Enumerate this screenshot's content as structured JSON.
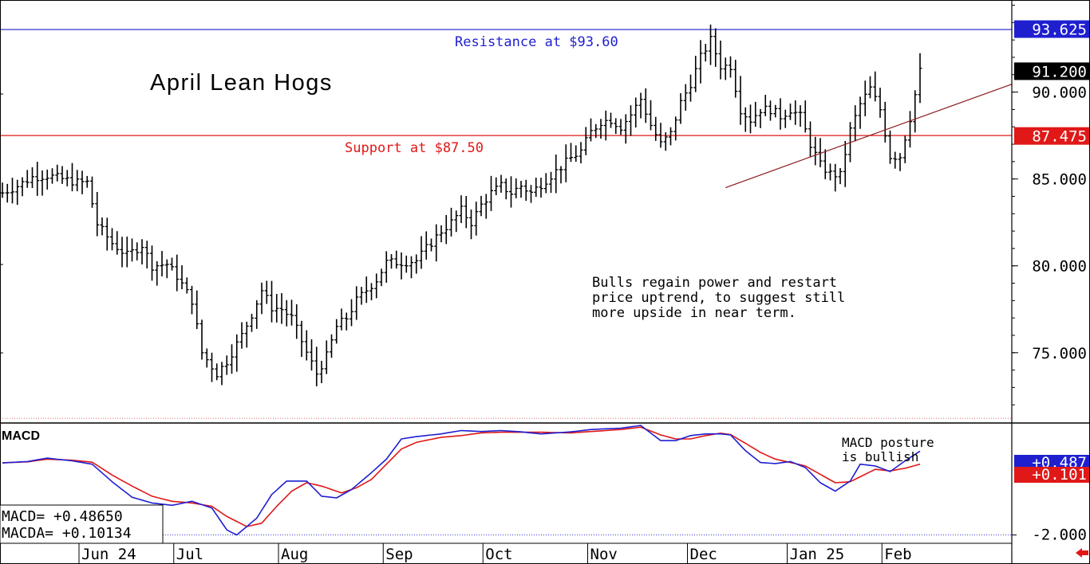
{
  "chart_data": {
    "type": "ohlc",
    "title": "April Lean Hogs",
    "price_axis": {
      "ticks": [
        "90.000",
        "85.000",
        "80.000",
        "75.000"
      ],
      "ylim": [
        71.0,
        95.3
      ]
    },
    "price_tags": [
      {
        "label": "93.625",
        "value": 93.625,
        "bg": "#1f1fd0",
        "fg": "#ffffff"
      },
      {
        "label": "91.200",
        "value": 91.2,
        "bg": "#000000",
        "fg": "#ffffff"
      },
      {
        "label": "87.475",
        "value": 87.475,
        "bg": "#e01818",
        "fg": "#ffffff"
      }
    ],
    "levels": [
      {
        "label": "Resistance at $93.60",
        "value": 93.6,
        "color": "#1f1fd0"
      },
      {
        "label": "Support at $87.50",
        "value": 87.5,
        "color": "#e01818"
      }
    ],
    "annotation": "Bulls regain power and restart\nprice uptrend, to suggest still\nmore upside in near term.",
    "trendline": {
      "color": "#8b1a1a",
      "from": {
        "bar": 145,
        "value": 84.5
      },
      "to": {
        "bar": 198,
        "value": 90.0
      }
    },
    "months": [
      "Jun 24",
      "Jul",
      "Aug",
      "Sep",
      "Oct",
      "Nov",
      "Dec",
      "Jan 25",
      "Feb"
    ],
    "month_start_bars": [
      16,
      35,
      56,
      77,
      97,
      118,
      138,
      158,
      177
    ],
    "price_path": [
      [
        0,
        84.2
      ],
      [
        3,
        84.6
      ],
      [
        6,
        85.1
      ],
      [
        9,
        85.2
      ],
      [
        12,
        85.0
      ],
      [
        15,
        84.8
      ],
      [
        17,
        84.8
      ],
      [
        19,
        82.4
      ],
      [
        22,
        81.3
      ],
      [
        25,
        80.6
      ],
      [
        28,
        81.2
      ],
      [
        30,
        80.0
      ],
      [
        33,
        80.1
      ],
      [
        35,
        79.4
      ],
      [
        38,
        78.0
      ],
      [
        40,
        75.0
      ],
      [
        43,
        73.8
      ],
      [
        45,
        74.5
      ],
      [
        48,
        76.0
      ],
      [
        50,
        77.2
      ],
      [
        52,
        78.6
      ],
      [
        54,
        77.6
      ],
      [
        56,
        77.5
      ],
      [
        58,
        77.0
      ],
      [
        61,
        75.0
      ],
      [
        63,
        73.8
      ],
      [
        65,
        74.8
      ],
      [
        67,
        76.5
      ],
      [
        69,
        77.0
      ],
      [
        71,
        78.0
      ],
      [
        73,
        78.6
      ],
      [
        75,
        79.2
      ],
      [
        77,
        80.2
      ],
      [
        80,
        80.2
      ],
      [
        83,
        80.3
      ],
      [
        85,
        81.0
      ],
      [
        88,
        82.0
      ],
      [
        90,
        82.5
      ],
      [
        92,
        83.2
      ],
      [
        94,
        82.5
      ],
      [
        96,
        83.5
      ],
      [
        98,
        84.2
      ],
      [
        100,
        84.6
      ],
      [
        102,
        84.2
      ],
      [
        104,
        84.6
      ],
      [
        106,
        84.2
      ],
      [
        108,
        84.7
      ],
      [
        110,
        85.2
      ],
      [
        112,
        85.7
      ],
      [
        114,
        86.2
      ],
      [
        116,
        86.6
      ],
      [
        118,
        87.7
      ],
      [
        120,
        88.3
      ],
      [
        122,
        88.4
      ],
      [
        124,
        88.0
      ],
      [
        126,
        88.7
      ],
      [
        128,
        89.6
      ],
      [
        130,
        88.1
      ],
      [
        132,
        87.0
      ],
      [
        134,
        87.6
      ],
      [
        136,
        89.4
      ],
      [
        138,
        90.5
      ],
      [
        140,
        92.0
      ],
      [
        142,
        93.0
      ],
      [
        144,
        91.5
      ],
      [
        146,
        91.5
      ],
      [
        148,
        89.0
      ],
      [
        150,
        88.4
      ],
      [
        152,
        89.0
      ],
      [
        154,
        89.0
      ],
      [
        156,
        88.6
      ],
      [
        158,
        89.0
      ],
      [
        160,
        88.6
      ],
      [
        162,
        87.0
      ],
      [
        164,
        85.8
      ],
      [
        166,
        85.3
      ],
      [
        168,
        85.2
      ],
      [
        170,
        87.8
      ],
      [
        172,
        89.3
      ],
      [
        174,
        90.2
      ],
      [
        176,
        89.0
      ],
      [
        178,
        86.3
      ],
      [
        180,
        86.3
      ],
      [
        182,
        88.5
      ],
      [
        184,
        91.2
      ]
    ],
    "macd": {
      "ylim": [
        -2.2,
        1.3
      ],
      "scale_tags": [
        {
          "label": "+0.487",
          "value": 0.487,
          "bg": "#1f1fd0",
          "fg": "#ffffff"
        },
        {
          "label": "+0.101",
          "value": 0.101,
          "bg": "#e01818",
          "fg": "#ffffff"
        }
      ],
      "tick": "-2.000",
      "tick_value": -2.0,
      "label": "MACD",
      "annotation": "MACD posture\nis bullish",
      "macd_line_color": "#1f1fd0",
      "signal_line_color": "#e01818",
      "macd_path": [
        [
          0,
          0.14
        ],
        [
          5,
          0.18
        ],
        [
          9,
          0.28
        ],
        [
          14,
          0.2
        ],
        [
          18,
          0.1
        ],
        [
          22,
          -0.42
        ],
        [
          26,
          -0.88
        ],
        [
          30,
          -1.05
        ],
        [
          34,
          -1.12
        ],
        [
          38,
          -1.0
        ],
        [
          42,
          -1.2
        ],
        [
          45,
          -1.85
        ],
        [
          47,
          -2.0
        ],
        [
          51,
          -1.5
        ],
        [
          54,
          -0.8
        ],
        [
          57,
          -0.4
        ],
        [
          61,
          -0.4
        ],
        [
          64,
          -0.85
        ],
        [
          67,
          -0.9
        ],
        [
          70,
          -0.65
        ],
        [
          74,
          -0.15
        ],
        [
          77,
          0.25
        ],
        [
          80,
          0.85
        ],
        [
          83,
          0.92
        ],
        [
          88,
          1.0
        ],
        [
          92,
          1.1
        ],
        [
          96,
          1.07
        ],
        [
          100,
          1.1
        ],
        [
          104,
          1.06
        ],
        [
          108,
          1.0
        ],
        [
          114,
          1.06
        ],
        [
          118,
          1.13
        ],
        [
          124,
          1.17
        ],
        [
          128,
          1.25
        ],
        [
          132,
          0.8
        ],
        [
          135,
          0.8
        ],
        [
          138,
          0.95
        ],
        [
          141,
          1.0
        ],
        [
          144,
          1.0
        ],
        [
          146,
          0.97
        ],
        [
          149,
          0.5
        ],
        [
          152,
          0.15
        ],
        [
          155,
          0.12
        ],
        [
          158,
          0.18
        ],
        [
          161,
          0.0
        ],
        [
          164,
          -0.45
        ],
        [
          167,
          -0.7
        ],
        [
          170,
          -0.4
        ],
        [
          172,
          0.1
        ],
        [
          175,
          0.05
        ],
        [
          178,
          -0.12
        ],
        [
          181,
          0.2
        ],
        [
          184,
          0.49
        ]
      ],
      "signal_path": [
        [
          0,
          0.14
        ],
        [
          5,
          0.17
        ],
        [
          9,
          0.25
        ],
        [
          14,
          0.22
        ],
        [
          18,
          0.16
        ],
        [
          22,
          -0.22
        ],
        [
          26,
          -0.55
        ],
        [
          30,
          -0.85
        ],
        [
          34,
          -1.0
        ],
        [
          38,
          -1.05
        ],
        [
          42,
          -1.15
        ],
        [
          45,
          -1.45
        ],
        [
          49,
          -1.75
        ],
        [
          52,
          -1.65
        ],
        [
          55,
          -1.15
        ],
        [
          58,
          -0.7
        ],
        [
          61,
          -0.45
        ],
        [
          64,
          -0.55
        ],
        [
          68,
          -0.75
        ],
        [
          71,
          -0.6
        ],
        [
          74,
          -0.35
        ],
        [
          77,
          0.1
        ],
        [
          80,
          0.55
        ],
        [
          83,
          0.75
        ],
        [
          88,
          0.9
        ],
        [
          92,
          0.95
        ],
        [
          96,
          1.03
        ],
        [
          100,
          1.05
        ],
        [
          104,
          1.05
        ],
        [
          108,
          1.05
        ],
        [
          114,
          1.03
        ],
        [
          118,
          1.07
        ],
        [
          124,
          1.13
        ],
        [
          128,
          1.2
        ],
        [
          132,
          0.97
        ],
        [
          135,
          0.85
        ],
        [
          138,
          0.85
        ],
        [
          141,
          0.95
        ],
        [
          144,
          1.02
        ],
        [
          146,
          0.98
        ],
        [
          149,
          0.72
        ],
        [
          152,
          0.45
        ],
        [
          155,
          0.25
        ],
        [
          158,
          0.15
        ],
        [
          161,
          0.05
        ],
        [
          164,
          -0.2
        ],
        [
          167,
          -0.45
        ],
        [
          170,
          -0.42
        ],
        [
          173,
          -0.2
        ],
        [
          175,
          -0.05
        ],
        [
          178,
          -0.1
        ],
        [
          181,
          -0.02
        ],
        [
          184,
          0.1
        ]
      ]
    },
    "readout": {
      "macd_label": "MACD=",
      "macd_value": "+0.48650",
      "macda_label": "MACDA=",
      "macda_value": "+0.10134"
    }
  }
}
